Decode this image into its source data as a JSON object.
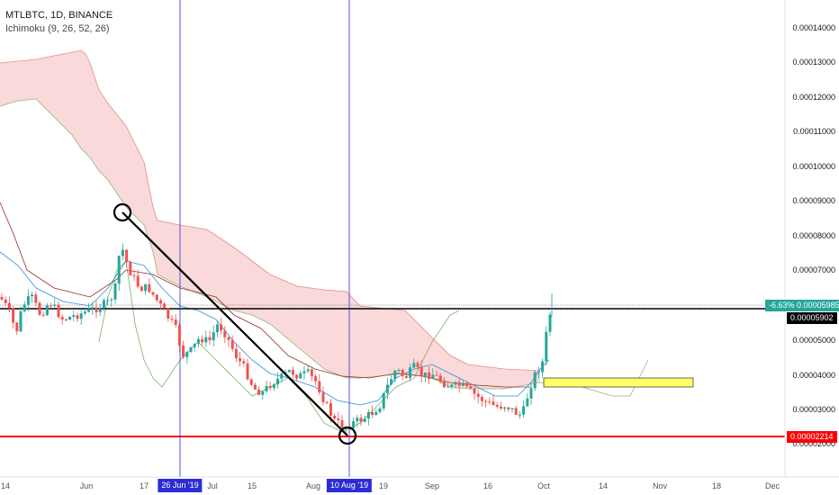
{
  "legend": {
    "symbol": "MTLBTC, 1D, BINANCE",
    "indicator": "Ichimoku (9, 26, 52, 26)"
  },
  "chart_data": {
    "type": "candlestick",
    "title": "MTLBTC, 1D, BINANCE",
    "ylim": [
      1.95e-05,
      1.45e-05
    ],
    "y_ticks": [
      "0.00014000",
      "0.00013000",
      "0.00012000",
      "0.00011000",
      "0.00010000",
      "0.00009000",
      "0.00008000",
      "0.00007000",
      "0.00005000",
      "0.00004000",
      "0.00003000",
      "0.00002000"
    ],
    "x_ticks": [
      "14",
      "Jun",
      "17",
      "Jul",
      "15",
      "Aug",
      "19",
      "Sep",
      "16",
      "Oct",
      "14",
      "Nov",
      "18",
      "Dec"
    ],
    "annotations": {
      "date_markers": [
        "26 Jun '19",
        "10 Aug '19"
      ],
      "current_price": "0.00005985",
      "change": "-6.63%",
      "line_level": "0.00005902",
      "support_level": "0.00002214"
    },
    "colors": {
      "up": "#26a69a",
      "down": "#ef5350",
      "cloud": "#f8d8d8",
      "marker": "#2c2cd6",
      "support": "#ff0000",
      "box": "#ffff66"
    }
  }
}
